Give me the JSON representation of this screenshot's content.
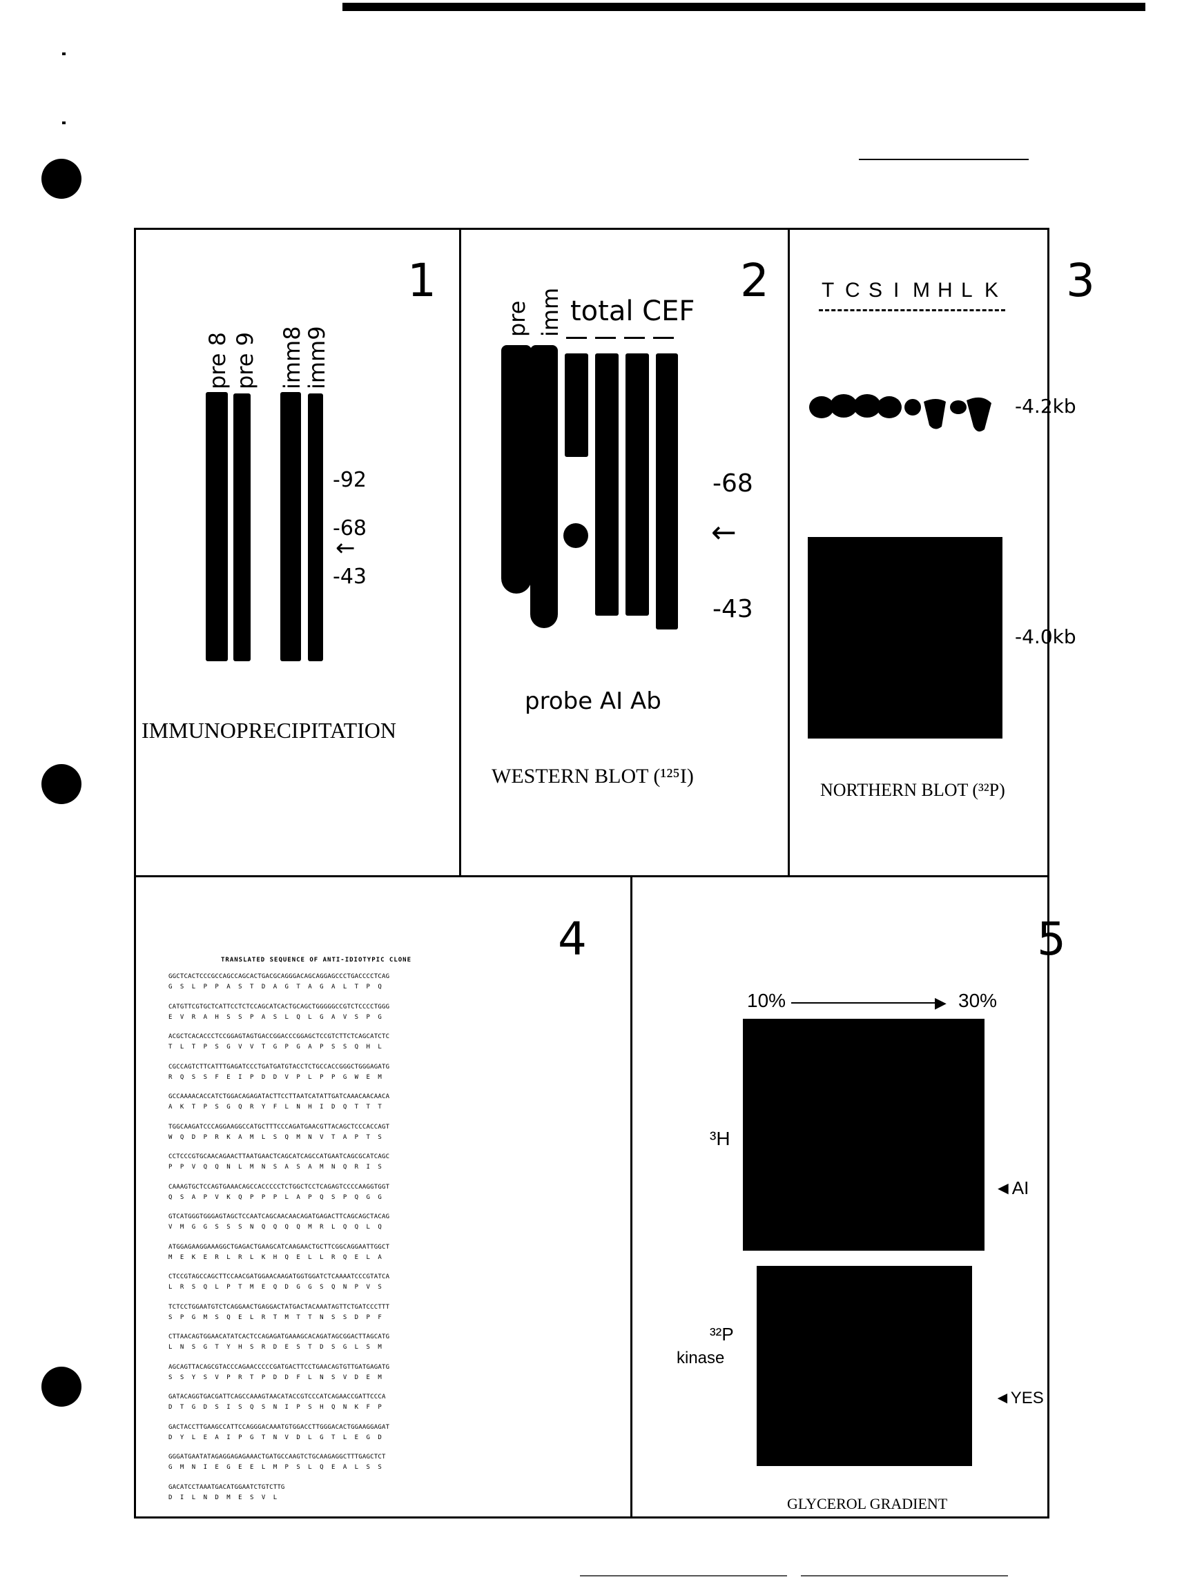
{
  "panel1": {
    "number": "1",
    "lane_labels": [
      "pre 8",
      "pre 9",
      "imm8",
      "imm9"
    ],
    "markers": [
      "-92",
      "-68",
      "-43"
    ],
    "caption": "IMMUNOPRECIPITATION"
  },
  "panel2": {
    "number": "2",
    "lane_labels": [
      "pre",
      "imm"
    ],
    "group_label": "total CEF",
    "markers": [
      "-68",
      "-43"
    ],
    "probe_label": "probe AI Ab",
    "caption": "WESTERN BLOT (¹²⁵I)"
  },
  "panel3": {
    "number": "3",
    "lane_letters": [
      "T",
      "C",
      "S",
      "I",
      "M",
      "H",
      "L",
      "K"
    ],
    "markers": [
      "-4.2kb",
      "-4.0kb"
    ],
    "caption": "NORTHERN BLOT (³²P)"
  },
  "panel4": {
    "number": "4",
    "title": "TRANSLATED SEQUENCE OF ANTI-IDIOTYPIC CLONE",
    "lines": [
      [
        "GGCTCACTCCCGCCAGCCAGCACTGACGCAGGGACAGCAGGAGCCCTGACCCCTCAG",
        "G  S  L  P  P  A  S  T  D  A  G  T  A  G  A  L  T  P  Q"
      ],
      [
        "CATGTTCGTGCTCATTCCTCTCCAGCATCACTGCAGCTGGGGGCCGTCTCCCCTGGG",
        "E  V  R  A  H  S  S  P  A  S  L  Q  L  G  A  V  S  P  G"
      ],
      [
        "ACGCTCACACCCTCCGGAGTAGTGACCGGACCCGGAGCTCCGTCTTCTCAGCATCTC",
        "T  L  T  P  S  G  V  V  T  G  P  G  A  P  S  S  Q  H  L"
      ],
      [
        "CGCCAGTCTTCATTTGAGATCCCTGATGATGTACCTCTGCCACCGGGCTGGGAGATG",
        "R  Q  S  S  F  E  I  P  D  D  V  P  L  P  P  G  W  E  M"
      ],
      [
        "GCCAAAACACCATCTGGACAGAGATACTTCCTTAATCATATTGATCAAACAACAACA",
        "A  K  T  P  S  G  Q  R  Y  F  L  N  H  I  D  Q  T  T  T"
      ],
      [
        "TGGCAAGATCCCAGGAAGGCCATGCTTTCCCAGATGAACGTTACAGCTCCCACCAGT",
        "W  Q  D  P  R  K  A  M  L  S  Q  M  N  V  T  A  P  T  S"
      ],
      [
        "CCTCCCGTGCAACAGAACTTAATGAACTCAGCATCAGCCATGAATCAGCGCATCAGC",
        "P  P  V  Q  Q  N  L  M  N  S  A  S  A  M  N  Q  R  I  S"
      ],
      [
        "CAAAGTGCTCCAGTGAAACAGCCACCCCCTCTGGCTCCTCAGAGTCCCCAAGGTGGT",
        "Q  S  A  P  V  K  Q  P  P  P  L  A  P  Q  S  P  Q  G  G"
      ],
      [
        "GTCATGGGTGGGAGTAGCTCCAATCAGCAACAACAGATGAGACTTCAGCAGCTACAG",
        "V  M  G  G  S  S  S  N  Q  Q  Q  Q  M  R  L  Q  Q  L  Q"
      ],
      [
        "ATGGAGAAGGAAAGGCTGAGACTGAAGCATCAAGAACTGCTTCGGCAGGAATTGGCT",
        "M  E  K  E  R  L  R  L  K  H  Q  E  L  L  R  Q  E  L  A"
      ],
      [
        "CTCCGTAGCCAGCTTCCAACGATGGAACAAGATGGTGGATCTCAAAATCCCGTATCA",
        "L  R  S  Q  L  P  T  M  E  Q  D  G  G  S  Q  N  P  V  S"
      ],
      [
        "TCTCCTGGAATGTCTCAGGAACTGAGGACTATGACTACAAATAGTTCTGATCCCTTT",
        "S  P  G  M  S  Q  E  L  R  T  M  T  T  N  S  S  D  P  F"
      ],
      [
        "CTTAACAGTGGAACATATCACTCCAGAGATGAAAGCACAGATAGCGGACTTAGCATG",
        "L  N  S  G  T  Y  H  S  R  D  E  S  T  D  S  G  L  S  M"
      ],
      [
        "AGCAGTTACAGCGTACCCAGAACCCCCGATGACTTCCTGAACAGTGTTGATGAGATG",
        "S  S  Y  S  V  P  R  T  P  D  D  F  L  N  S  V  D  E  M"
      ],
      [
        "GATACAGGTGACGATTCAGCCAAAGTAACATACCGTCCCATCAGAACCGATTCCCA",
        "D  T  G  D  S  I  S  Q  S  N  I  P  S  H  Q  N  K  F  P"
      ],
      [
        "GACTACCTTGAAGCCATTCCAGGGACAAATGTGGACCTTGGGACACTGGAAGGAGAT",
        "D  Y  L  E  A  I  P  G  T  N  V  D  L  G  T  L  E  G  D"
      ],
      [
        "GGGATGAATATAGAGGAGAGAAACTGATGCCAAGTCTGCAAGAGGCTTTGAGCTCT",
        "G  M  N  I  E  G  E  E  L  M  P  S  L  Q  E  A  L  S  S"
      ],
      [
        "GACATCCTAAATGACATGGAATCTGTCTTG",
        "D  I  L  N  D  M  E  S  V  L"
      ]
    ]
  },
  "panel5": {
    "number": "5",
    "gradient_start": "10%",
    "gradient_end": "30%",
    "label_3h": "³H",
    "label_32p": "³²P",
    "label_kinase": "kinase",
    "arrow_ai": "◄AI",
    "arrow_yes": "◄YES",
    "caption": "GLYCEROL GRADIENT"
  }
}
